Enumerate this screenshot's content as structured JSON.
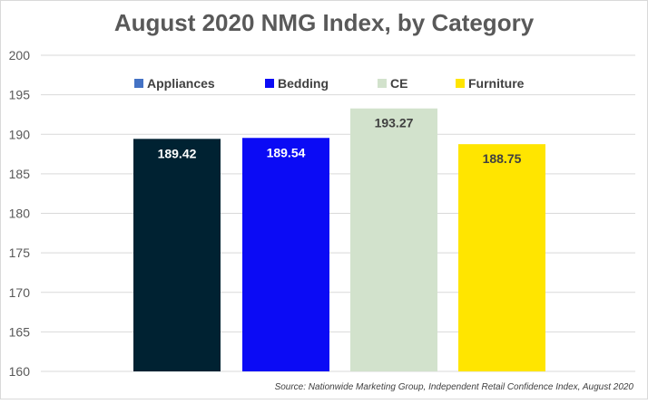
{
  "chart_data": {
    "type": "bar",
    "title": "August 2020 NMG Index, by Category",
    "categories": [
      "Appliances",
      "Bedding",
      "CE",
      "Furniture"
    ],
    "values": [
      189.42,
      189.54,
      193.27,
      188.75
    ],
    "data_labels": [
      "189.42",
      "189.54",
      "193.27",
      "188.75"
    ],
    "colors": [
      "#002232",
      "#0B0BF5",
      "#D2E2CC",
      "#FFE500"
    ],
    "legend_swatch_colors": [
      "#4472C4",
      "#0B0BF5",
      "#D2E2CC",
      "#FFE500"
    ],
    "label_colors": [
      "#FFFFFF",
      "#FFFFFF",
      "#404040",
      "#404040"
    ],
    "ylim": [
      160,
      200
    ],
    "yticks": [
      160,
      165,
      170,
      175,
      180,
      185,
      190,
      195,
      200
    ],
    "xlabel": "",
    "ylabel": "",
    "grid": true,
    "legend_position": "top",
    "source": "Source: Nationwide Marketing Group, Independent Retail Confidence Index, August 2020"
  }
}
